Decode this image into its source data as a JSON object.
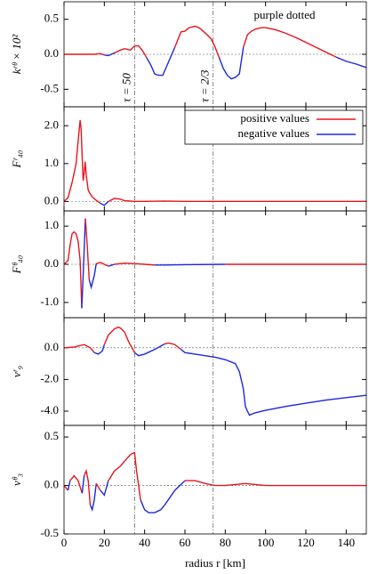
{
  "chart_data": [
    {
      "type": "line",
      "ylabel": "kʳᶿ × 10²",
      "annotation_text": "purple dotted",
      "annotation_color": "#d0206a",
      "annotations": [
        {
          "x": 35,
          "text": "τ = 50"
        },
        {
          "x": 74,
          "text": "τ = 2/3"
        }
      ],
      "x": [
        0,
        5,
        10,
        15,
        18,
        20,
        22,
        25,
        28,
        30,
        33,
        35,
        37,
        39,
        41,
        43,
        45,
        47,
        49,
        52,
        55,
        58,
        60,
        62,
        65,
        67,
        69,
        71,
        73,
        75,
        77,
        79,
        81,
        83,
        85,
        87,
        89,
        91,
        93,
        95,
        98,
        100,
        105,
        110,
        115,
        120,
        125,
        130,
        135,
        140,
        145,
        150
      ],
      "values": [
        0,
        0,
        0,
        0,
        0.01,
        -0.01,
        -0.02,
        0.02,
        0.06,
        0.08,
        0.06,
        0.12,
        0.12,
        0.05,
        -0.05,
        -0.15,
        -0.28,
        -0.3,
        -0.3,
        -0.1,
        0.1,
        0.32,
        0.33,
        0.38,
        0.4,
        0.38,
        0.33,
        0.28,
        0.22,
        0.1,
        -0.05,
        -0.2,
        -0.3,
        -0.35,
        -0.33,
        -0.28,
        0.1,
        0.28,
        0.33,
        0.36,
        0.38,
        0.38,
        0.35,
        0.3,
        0.24,
        0.17,
        0.1,
        0.03,
        -0.04,
        -0.1,
        -0.14,
        -0.19
      ],
      "color_positive": "#e8141c",
      "color_negative": "#1a28e0",
      "zero_line": true,
      "xlim": [
        0,
        150
      ],
      "xticks": [
        0,
        20,
        40,
        60,
        80,
        100,
        120,
        140
      ],
      "ylim": [
        -0.75,
        0.75
      ],
      "yticks": [
        0.5,
        {
          "value": 0,
          "label": "0.0"
        },
        -0.5
      ]
    },
    {
      "type": "line",
      "ylabel": "Fʳ₄₀",
      "legend": {
        "position": "upper right",
        "entries": [
          {
            "name": "positive values",
            "color": "#e8141c"
          },
          {
            "name": "negative values",
            "color": "#1a28e0"
          }
        ]
      },
      "x": [
        0,
        2,
        4,
        6,
        7,
        8,
        8.5,
        9,
        9.5,
        10,
        10.5,
        11,
        12,
        13,
        14,
        16,
        18,
        20,
        22,
        25,
        28,
        30,
        35,
        40,
        50,
        60,
        80,
        100,
        120,
        150
      ],
      "values": [
        0,
        0.1,
        0.5,
        1.0,
        1.6,
        2.15,
        1.9,
        1.2,
        0.55,
        0.75,
        1.05,
        0.7,
        0.3,
        0.2,
        0.12,
        0.03,
        -0.05,
        -0.1,
        0,
        0.08,
        0.06,
        0.02,
        0,
        0,
        0.01,
        0,
        0,
        0,
        0,
        0
      ],
      "color_positive": "#e8141c",
      "color_negative": "#1a28e0",
      "zero_line": true,
      "xlim": [
        0,
        150
      ],
      "xticks": [
        0,
        20,
        40,
        60,
        80,
        100,
        120,
        140
      ],
      "ylim": [
        -0.25,
        2.5
      ],
      "yticks": [
        {
          "value": 2,
          "label": "2.0"
        },
        {
          "value": 1,
          "label": "1.0"
        },
        {
          "value": 0,
          "label": "0.0"
        }
      ]
    },
    {
      "type": "line",
      "ylabel": "Fᶿ₄₀",
      "x": [
        0,
        2,
        3,
        4,
        5,
        6,
        7,
        8,
        8.8,
        9.5,
        10.6,
        11.5,
        12.5,
        13.5,
        15,
        16,
        18,
        20,
        22,
        25,
        30,
        35,
        40,
        45,
        50,
        60,
        80,
        100,
        120,
        150
      ],
      "values": [
        0,
        0.1,
        0.5,
        0.8,
        0.85,
        0.8,
        0.6,
        0.1,
        -1.15,
        -0.3,
        1.2,
        0.5,
        -0.4,
        -0.6,
        -0.3,
        0.02,
        0.05,
        0,
        -0.05,
        0,
        0.03,
        0.02,
        0,
        -0.02,
        -0.02,
        -0.01,
        0,
        0,
        0,
        0
      ],
      "color_positive": "#e8141c",
      "color_negative": "#1a28e0",
      "zero_line": true,
      "xlim": [
        0,
        150
      ],
      "xticks": [
        0,
        20,
        40,
        60,
        80,
        100,
        120,
        140
      ],
      "ylim": [
        -1.4,
        1.4
      ],
      "yticks": [
        {
          "value": 1,
          "label": "1.0"
        },
        {
          "value": 0,
          "label": "0.0"
        },
        {
          "value": -1,
          "label": "-1.0"
        }
      ]
    },
    {
      "type": "line",
      "ylabel": "vʳ₉",
      "x": [
        0,
        5,
        10,
        13,
        15,
        17,
        19,
        20,
        22,
        25,
        27,
        28,
        30,
        32,
        35,
        37,
        40,
        45,
        50,
        52,
        55,
        58,
        60,
        65,
        70,
        75,
        80,
        85,
        87,
        89,
        90,
        91,
        92,
        95,
        100,
        110,
        120,
        130,
        140,
        150
      ],
      "values": [
        0,
        0.05,
        0.2,
        0,
        -0.3,
        -0.4,
        -0.2,
        0.2,
        0.8,
        1.2,
        1.3,
        1.25,
        1.0,
        0.4,
        -0.3,
        -0.5,
        -0.4,
        -0.1,
        0.25,
        0.3,
        0.2,
        -0.1,
        -0.3,
        -0.4,
        -0.5,
        -0.6,
        -0.75,
        -1.0,
        -1.5,
        -2.6,
        -3.7,
        -4.0,
        -4.25,
        -4.1,
        -3.95,
        -3.7,
        -3.5,
        -3.3,
        -3.15,
        -3.0
      ],
      "color_positive": "#e8141c",
      "color_negative": "#1a28e0",
      "zero_line": true,
      "xlim": [
        0,
        150
      ],
      "xticks": [
        0,
        20,
        40,
        60,
        80,
        100,
        120,
        140
      ],
      "ylim": [
        -4.9,
        1.9
      ],
      "yticks": [
        {
          "value": 0,
          "label": "0.0"
        },
        {
          "value": -2,
          "label": "-2.0"
        },
        {
          "value": -4,
          "label": "-4.0"
        }
      ]
    },
    {
      "type": "line",
      "ylabel": "vᶿ₃",
      "xlabel": "radius r [km]",
      "x": [
        0,
        2,
        3,
        5,
        7,
        9,
        10,
        11,
        12,
        13,
        14,
        15,
        16,
        18,
        20,
        22,
        25,
        28,
        30,
        33,
        35,
        36,
        38,
        40,
        42,
        45,
        48,
        50,
        55,
        60,
        65,
        70,
        75,
        80,
        85,
        90,
        100,
        110,
        150
      ],
      "values": [
        0,
        -0.05,
        0.05,
        0.1,
        0.05,
        -0.08,
        0.1,
        0.15,
        0.05,
        -0.2,
        -0.25,
        -0.15,
        0.02,
        -0.05,
        -0.1,
        0.05,
        0.15,
        0.2,
        0.25,
        0.32,
        0.34,
        0.15,
        -0.15,
        -0.25,
        -0.28,
        -0.28,
        -0.25,
        -0.2,
        -0.05,
        0.05,
        0.05,
        0.02,
        0,
        0,
        0.01,
        0.02,
        0,
        0,
        0
      ],
      "color_positive": "#e8141c",
      "color_negative": "#1a28e0",
      "zero_line": true,
      "xlim": [
        0,
        150
      ],
      "xticks": [
        0,
        20,
        40,
        60,
        80,
        100,
        120,
        140
      ],
      "ylim": [
        -0.5,
        0.62
      ],
      "yticks": [
        0.5,
        {
          "value": 0,
          "label": "0.0"
        },
        -0.5
      ]
    }
  ]
}
